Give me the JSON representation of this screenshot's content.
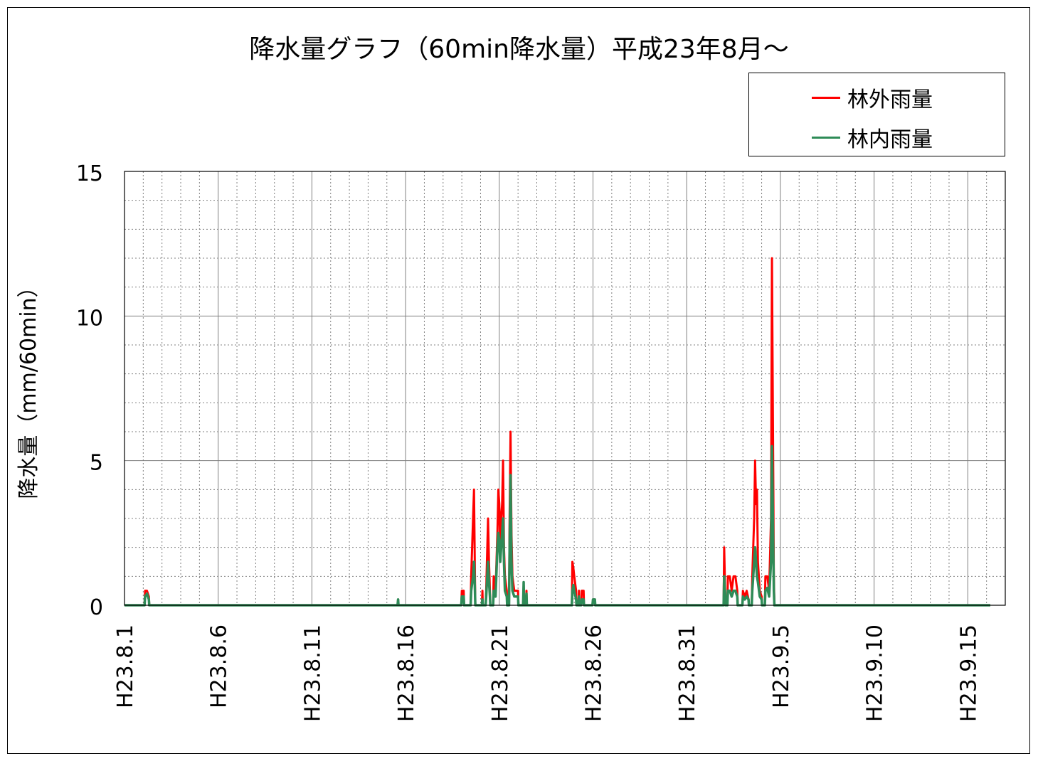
{
  "chart_data": {
    "type": "line",
    "title": "降水量グラフ（60min降水量）平成23年8月～",
    "ylabel": "降水量（mm/60min）",
    "xlabel": "",
    "ylim": [
      0,
      15
    ],
    "y_ticks": [
      0,
      5,
      10,
      15
    ],
    "x_tick_labels": [
      "H23.8.1",
      "H23.8.6",
      "H23.8.11",
      "H23.8.16",
      "H23.8.21",
      "H23.8.26",
      "H23.8.31",
      "H23.9.5",
      "H23.9.10",
      "H23.9.15"
    ],
    "x_range_days": [
      0,
      47
    ],
    "grid": true,
    "legend_position": "top-right",
    "series": [
      {
        "name": "林外雨量",
        "color": "#ff0000",
        "points": [
          [
            1.1,
            0.5
          ],
          [
            1.2,
            0.5
          ],
          [
            1.3,
            0.3
          ],
          [
            14.6,
            0.2
          ],
          [
            18.0,
            0.5
          ],
          [
            18.1,
            0.5
          ],
          [
            18.5,
            1.0
          ],
          [
            18.6,
            3.0
          ],
          [
            18.65,
            4.0
          ],
          [
            18.7,
            1.0
          ],
          [
            19.1,
            0.5
          ],
          [
            19.3,
            0.5
          ],
          [
            19.4,
            3.0
          ],
          [
            19.45,
            1.5
          ],
          [
            19.5,
            0.5
          ],
          [
            19.7,
            1.0
          ],
          [
            19.8,
            0.5
          ],
          [
            19.9,
            2.5
          ],
          [
            19.95,
            4.0
          ],
          [
            20.0,
            3.5
          ],
          [
            20.05,
            2.0
          ],
          [
            20.1,
            3.0
          ],
          [
            20.15,
            3.5
          ],
          [
            20.2,
            5.0
          ],
          [
            20.25,
            2.0
          ],
          [
            20.3,
            1.0
          ],
          [
            20.4,
            0.5
          ],
          [
            20.55,
            3.0
          ],
          [
            20.6,
            6.0
          ],
          [
            20.65,
            2.5
          ],
          [
            20.7,
            1.0
          ],
          [
            20.8,
            0.5
          ],
          [
            20.9,
            0.5
          ],
          [
            21.0,
            0.5
          ],
          [
            21.3,
            0.7
          ],
          [
            21.45,
            0.5
          ],
          [
            23.9,
            1.5
          ],
          [
            23.95,
            1.3
          ],
          [
            24.0,
            1.0
          ],
          [
            24.1,
            0.5
          ],
          [
            24.25,
            0.5
          ],
          [
            24.4,
            0.5
          ],
          [
            24.5,
            0.5
          ],
          [
            25.0,
            0.2
          ],
          [
            25.1,
            0.2
          ],
          [
            32.0,
            2.0
          ],
          [
            32.05,
            0.5
          ],
          [
            32.2,
            1.0
          ],
          [
            32.3,
            1.0
          ],
          [
            32.4,
            0.5
          ],
          [
            32.5,
            1.0
          ],
          [
            32.6,
            1.0
          ],
          [
            32.7,
            0.5
          ],
          [
            33.0,
            0.5
          ],
          [
            33.1,
            0.3
          ],
          [
            33.2,
            0.5
          ],
          [
            33.3,
            0.2
          ],
          [
            33.5,
            1.0
          ],
          [
            33.55,
            2.0
          ],
          [
            33.6,
            3.0
          ],
          [
            33.65,
            5.0
          ],
          [
            33.7,
            3.5
          ],
          [
            33.75,
            4.0
          ],
          [
            33.8,
            1.5
          ],
          [
            33.9,
            0.5
          ],
          [
            34.0,
            0.3
          ],
          [
            34.2,
            1.0
          ],
          [
            34.3,
            1.0
          ],
          [
            34.4,
            0.5
          ],
          [
            34.5,
            3.0
          ],
          [
            34.55,
            12.0
          ],
          [
            34.6,
            6.5
          ],
          [
            34.65,
            1.0
          ]
        ]
      },
      {
        "name": "林内雨量",
        "color": "#2e8b57",
        "points": [
          [
            1.1,
            0.3
          ],
          [
            1.2,
            0.4
          ],
          [
            1.3,
            0.2
          ],
          [
            14.6,
            0.2
          ],
          [
            18.0,
            0.3
          ],
          [
            18.1,
            0.3
          ],
          [
            18.5,
            0.5
          ],
          [
            18.6,
            1.0
          ],
          [
            18.65,
            1.5
          ],
          [
            18.7,
            0.5
          ],
          [
            19.1,
            0.2
          ],
          [
            19.3,
            0.3
          ],
          [
            19.4,
            1.5
          ],
          [
            19.45,
            0.8
          ],
          [
            19.5,
            0.3
          ],
          [
            19.7,
            0.5
          ],
          [
            19.8,
            0.3
          ],
          [
            19.9,
            2.0
          ],
          [
            19.95,
            2.5
          ],
          [
            20.0,
            2.2
          ],
          [
            20.05,
            1.5
          ],
          [
            20.1,
            2.0
          ],
          [
            20.15,
            2.5
          ],
          [
            20.2,
            3.0
          ],
          [
            20.25,
            1.5
          ],
          [
            20.3,
            0.5
          ],
          [
            20.4,
            0.3
          ],
          [
            20.55,
            2.0
          ],
          [
            20.6,
            4.5
          ],
          [
            20.65,
            1.5
          ],
          [
            20.7,
            0.5
          ],
          [
            20.8,
            0.3
          ],
          [
            20.9,
            0.3
          ],
          [
            21.0,
            0.3
          ],
          [
            21.3,
            0.8
          ],
          [
            21.45,
            0.4
          ],
          [
            23.9,
            0.5
          ],
          [
            23.95,
            0.7
          ],
          [
            24.0,
            0.5
          ],
          [
            24.1,
            0.2
          ],
          [
            24.25,
            0.3
          ],
          [
            24.4,
            0.2
          ],
          [
            24.5,
            0.2
          ],
          [
            25.0,
            0.2
          ],
          [
            25.1,
            0.2
          ],
          [
            32.0,
            1.0
          ],
          [
            32.05,
            0.4
          ],
          [
            32.2,
            0.5
          ],
          [
            32.3,
            0.5
          ],
          [
            32.4,
            0.3
          ],
          [
            32.5,
            0.5
          ],
          [
            32.6,
            0.5
          ],
          [
            32.7,
            0.3
          ],
          [
            33.0,
            0.3
          ],
          [
            33.1,
            0.2
          ],
          [
            33.2,
            0.3
          ],
          [
            33.3,
            0.2
          ],
          [
            33.5,
            0.5
          ],
          [
            33.55,
            1.0
          ],
          [
            33.6,
            1.5
          ],
          [
            33.65,
            2.0
          ],
          [
            33.7,
            1.5
          ],
          [
            33.75,
            1.0
          ],
          [
            33.8,
            0.8
          ],
          [
            33.9,
            0.3
          ],
          [
            34.0,
            0.2
          ],
          [
            34.2,
            0.5
          ],
          [
            34.3,
            0.6
          ],
          [
            34.4,
            0.3
          ],
          [
            34.5,
            1.5
          ],
          [
            34.55,
            5.5
          ],
          [
            34.6,
            3.0
          ],
          [
            34.65,
            0.5
          ]
        ]
      }
    ]
  }
}
